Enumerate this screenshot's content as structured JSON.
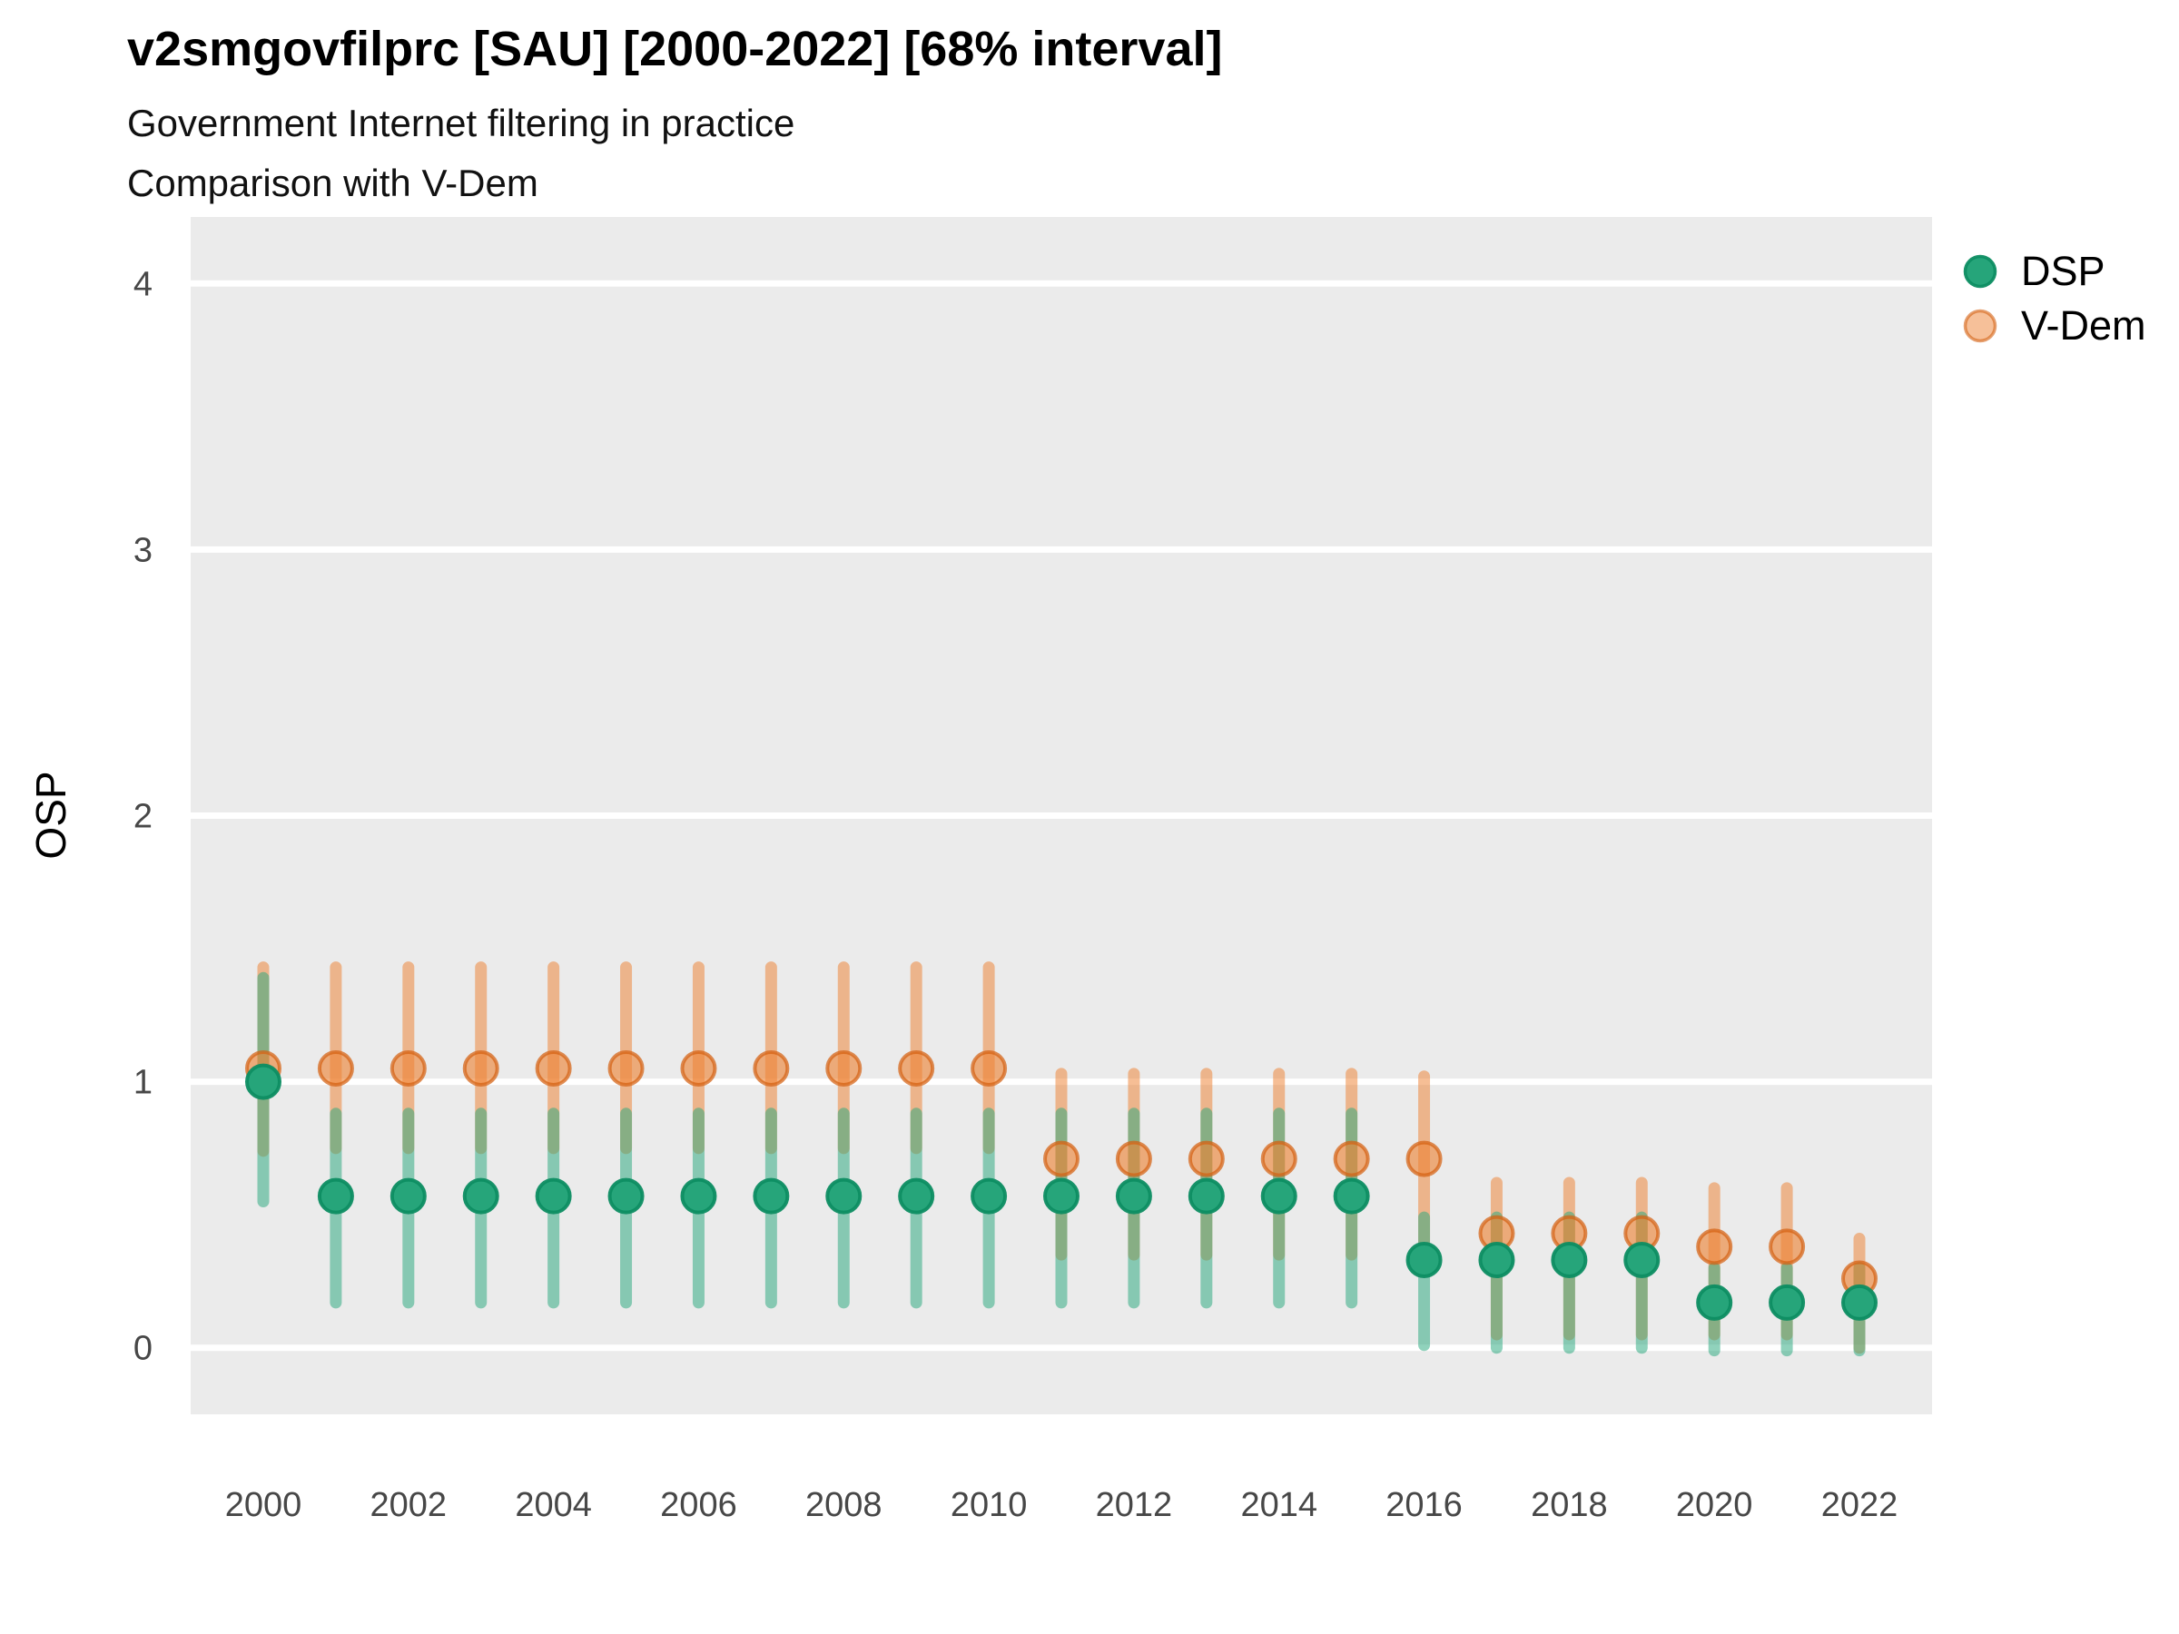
{
  "header": {
    "title": "v2smgovfilprc [SAU] [2000-2022] [68% interval]",
    "subtitle1": "Government Internet filtering in practice",
    "subtitle2": "Comparison with V-Dem"
  },
  "axes": {
    "y_label": "OSP",
    "y_ticks": [
      "0",
      "1",
      "2",
      "3",
      "4"
    ],
    "x_ticks": [
      "2000",
      "2002",
      "2004",
      "2006",
      "2008",
      "2010",
      "2012",
      "2014",
      "2016",
      "2018",
      "2020",
      "2022"
    ]
  },
  "legend": {
    "items": [
      {
        "label": "DSP",
        "swatch": "green-dot"
      },
      {
        "label": "V-Dem",
        "swatch": "orange-dot"
      }
    ]
  },
  "colors": {
    "panel_bg": "#ebebeb",
    "gridline": "#ffffff",
    "tick_text": "#474747",
    "title_text": "#000000",
    "dsp_base": "#2AA87E",
    "dsp_bar": "rgba(42,168,126,0.52)",
    "dsp_dot_fill": "#26A57A",
    "dsp_dot_stroke": "rgba(13,141,98,0.95)",
    "vdem_base": "#ED8234",
    "vdem_bar": "rgba(237,130,52,0.52)",
    "vdem_dot_fill": "rgba(237,130,52,0.62)",
    "vdem_dot_stroke": "rgba(212,97,18,0.72)"
  },
  "chart_data": {
    "type": "scatter",
    "title": "v2smgovfilprc [SAU] [2000-2022] [68% interval]",
    "subtitle": [
      "Government Internet filtering in practice",
      "Comparison with V-Dem"
    ],
    "xlabel": "",
    "ylabel": "OSP",
    "interval": "68%",
    "ylim": [
      -0.25,
      4.25
    ],
    "grid": "major-horizontal-white-on-gray",
    "legend_position": "right",
    "x": [
      2000,
      2001,
      2002,
      2003,
      2004,
      2005,
      2006,
      2007,
      2008,
      2009,
      2010,
      2011,
      2012,
      2013,
      2014,
      2015,
      2016,
      2017,
      2018,
      2019,
      2020,
      2021,
      2022
    ],
    "series": [
      {
        "name": "DSP",
        "estimate": [
          1.0,
          0.57,
          0.57,
          0.57,
          0.57,
          0.57,
          0.57,
          0.57,
          0.57,
          0.57,
          0.57,
          0.57,
          0.57,
          0.57,
          0.57,
          0.57,
          0.33,
          0.33,
          0.33,
          0.33,
          0.17,
          0.17,
          0.17
        ],
        "lower": [
          0.55,
          0.17,
          0.17,
          0.17,
          0.17,
          0.17,
          0.17,
          0.17,
          0.17,
          0.17,
          0.17,
          0.17,
          0.17,
          0.17,
          0.17,
          0.17,
          0.01,
          0.0,
          0.0,
          0.0,
          -0.01,
          -0.01,
          -0.01
        ],
        "upper": [
          1.39,
          0.88,
          0.88,
          0.88,
          0.88,
          0.88,
          0.88,
          0.88,
          0.88,
          0.88,
          0.88,
          0.88,
          0.88,
          0.88,
          0.88,
          0.88,
          0.49,
          0.49,
          0.49,
          0.49,
          0.3,
          0.3,
          0.3
        ]
      },
      {
        "name": "V-Dem",
        "estimate": [
          1.05,
          1.05,
          1.05,
          1.05,
          1.05,
          1.05,
          1.05,
          1.05,
          1.05,
          1.05,
          1.05,
          0.71,
          0.71,
          0.71,
          0.71,
          0.71,
          0.71,
          0.43,
          0.43,
          0.43,
          0.38,
          0.38,
          0.26
        ],
        "lower": [
          0.74,
          0.75,
          0.75,
          0.75,
          0.75,
          0.75,
          0.75,
          0.75,
          0.75,
          0.75,
          0.75,
          0.35,
          0.35,
          0.35,
          0.35,
          0.35,
          0.39,
          0.05,
          0.05,
          0.05,
          0.05,
          0.05,
          0.0
        ],
        "upper": [
          1.43,
          1.43,
          1.43,
          1.43,
          1.43,
          1.43,
          1.43,
          1.43,
          1.43,
          1.43,
          1.43,
          1.03,
          1.03,
          1.03,
          1.03,
          1.03,
          1.02,
          0.62,
          0.62,
          0.62,
          0.6,
          0.6,
          0.41
        ]
      }
    ]
  }
}
